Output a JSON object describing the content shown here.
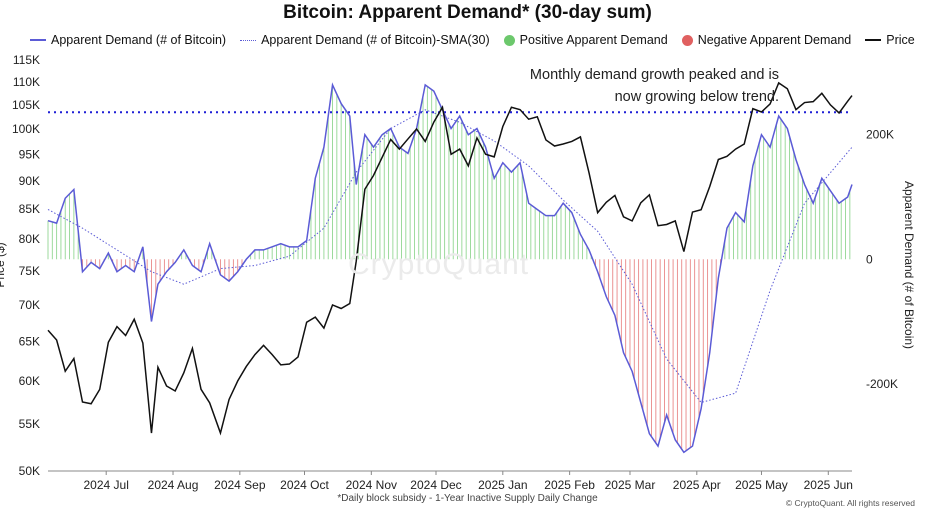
{
  "chart_data": {
    "type": "line",
    "title": "Bitcoin: Apparent Demand* (30-day sum)",
    "legend": [
      {
        "name": "Apparent Demand (# of Bitcoin)",
        "style": "line",
        "color": "#5b5bd6"
      },
      {
        "name": "Apparent Demand (# of Bitcoin)-SMA(30)",
        "style": "dotted",
        "color": "#5b5bd6"
      },
      {
        "name": "Positive Apparent Demand",
        "style": "dot",
        "color": "#6cc86c"
      },
      {
        "name": "Negative Apparent Demand",
        "style": "dot",
        "color": "#e06060"
      },
      {
        "name": "Price",
        "style": "line",
        "color": "#111111"
      }
    ],
    "legend_position": "top",
    "x_tick_labels": [
      "2024 Jul",
      "2024 Aug",
      "2024 Sep",
      "2024 Oct",
      "2024 Nov",
      "2024 Dec",
      "2025 Jan",
      "2025 Feb",
      "2025 Mar",
      "2025 Apr",
      "2025 May",
      "2025 Jun"
    ],
    "x_range": [
      "2024-06-18",
      "2025-06-26"
    ],
    "y_left": {
      "label": "Price ($)",
      "scale": "log",
      "range": [
        50000,
        115000
      ],
      "ticks": [
        {
          "v": 50000,
          "t": "50K"
        },
        {
          "v": 55000,
          "t": "55K"
        },
        {
          "v": 60000,
          "t": "60K"
        },
        {
          "v": 65000,
          "t": "65K"
        },
        {
          "v": 70000,
          "t": "70K"
        },
        {
          "v": 75000,
          "t": "75K"
        },
        {
          "v": 80000,
          "t": "80K"
        },
        {
          "v": 85000,
          "t": "85K"
        },
        {
          "v": 90000,
          "t": "90K"
        },
        {
          "v": 95000,
          "t": "95K"
        },
        {
          "v": 100000,
          "t": "100K"
        },
        {
          "v": 105000,
          "t": "105K"
        },
        {
          "v": 110000,
          "t": "110K"
        },
        {
          "v": 115000,
          "t": "115K"
        }
      ]
    },
    "y_right": {
      "label": "Apparent Demand (# of Bitcoin)",
      "range": [
        -340000,
        320000
      ],
      "ticks": [
        {
          "v": 200000,
          "t": "200K"
        },
        {
          "v": 0,
          "t": "0"
        },
        {
          "v": -200000,
          "t": "-200K"
        }
      ]
    },
    "reference_line": {
      "axis": "right",
      "value": 236000,
      "style": "dotted",
      "color": "#1f1fd6"
    },
    "annotation": "Monthly demand growth peaked and is\nnow growing below trend.",
    "series": [
      {
        "name": "Price",
        "axis": "left",
        "x": [
          "2024-06-18",
          "2024-06-22",
          "2024-06-26",
          "2024-06-30",
          "2024-07-04",
          "2024-07-08",
          "2024-07-12",
          "2024-07-16",
          "2024-07-20",
          "2024-07-24",
          "2024-07-28",
          "2024-08-01",
          "2024-08-05",
          "2024-08-08",
          "2024-08-12",
          "2024-08-16",
          "2024-08-20",
          "2024-08-24",
          "2024-08-28",
          "2024-09-01",
          "2024-09-06",
          "2024-09-10",
          "2024-09-14",
          "2024-09-18",
          "2024-09-22",
          "2024-09-26",
          "2024-09-30",
          "2024-10-04",
          "2024-10-08",
          "2024-10-12",
          "2024-10-16",
          "2024-10-20",
          "2024-10-24",
          "2024-10-28",
          "2024-11-01",
          "2024-11-05",
          "2024-11-08",
          "2024-11-12",
          "2024-11-16",
          "2024-11-20",
          "2024-11-24",
          "2024-11-28",
          "2024-12-02",
          "2024-12-06",
          "2024-12-10",
          "2024-12-14",
          "2024-12-18",
          "2024-12-22",
          "2024-12-26",
          "2024-12-30",
          "2025-01-03",
          "2025-01-07",
          "2025-01-11",
          "2025-01-15",
          "2025-01-19",
          "2025-01-23",
          "2025-01-27",
          "2025-01-31",
          "2025-02-04",
          "2025-02-08",
          "2025-02-12",
          "2025-02-16",
          "2025-02-20",
          "2025-02-24",
          "2025-02-28",
          "2025-03-04",
          "2025-03-08",
          "2025-03-12",
          "2025-03-16",
          "2025-03-20",
          "2025-03-24",
          "2025-03-28",
          "2025-04-01",
          "2025-04-05",
          "2025-04-09",
          "2025-04-13",
          "2025-04-17",
          "2025-04-21",
          "2025-04-25",
          "2025-04-29",
          "2025-05-03",
          "2025-05-07",
          "2025-05-11",
          "2025-05-15",
          "2025-05-19",
          "2025-05-23",
          "2025-05-27",
          "2025-05-31",
          "2025-06-04",
          "2025-06-08",
          "2025-06-12",
          "2025-06-16",
          "2025-06-20",
          "2025-06-24",
          "2025-06-26"
        ],
        "values": [
          66500,
          65200,
          61200,
          62800,
          57500,
          57300,
          59000,
          64900,
          67000,
          65800,
          68000,
          64800,
          54000,
          61700,
          59400,
          58800,
          61000,
          64100,
          59000,
          57400,
          54000,
          57800,
          60000,
          61800,
          63300,
          64500,
          63300,
          62000,
          62100,
          63000,
          67600,
          68300,
          66800,
          70000,
          69500,
          70200,
          76500,
          88500,
          91000,
          94400,
          97900,
          96000,
          98000,
          100000,
          97500,
          101400,
          104500,
          95000,
          96000,
          92800,
          98200,
          95000,
          94500,
          100500,
          104500,
          104000,
          102000,
          102500,
          97800,
          96600,
          97000,
          97500,
          98400,
          91500,
          84400,
          86200,
          87400,
          83700,
          83000,
          86100,
          87500,
          82200,
          82400,
          83000,
          78000,
          84500,
          84900,
          89000,
          94000,
          94600,
          96000,
          97000,
          104200,
          103500,
          105200,
          109800,
          108500,
          104000,
          105500,
          105700,
          107500,
          105000,
          103300,
          105800,
          107000
        ]
      },
      {
        "name": "Apparent Demand (# of Bitcoin)",
        "axis": "right",
        "x": [
          "2024-06-18",
          "2024-06-22",
          "2024-06-26",
          "2024-06-30",
          "2024-07-04",
          "2024-07-08",
          "2024-07-12",
          "2024-07-16",
          "2024-07-20",
          "2024-07-24",
          "2024-07-28",
          "2024-08-01",
          "2024-08-05",
          "2024-08-08",
          "2024-08-12",
          "2024-08-16",
          "2024-08-20",
          "2024-08-24",
          "2024-08-28",
          "2024-09-01",
          "2024-09-06",
          "2024-09-10",
          "2024-09-14",
          "2024-09-18",
          "2024-09-22",
          "2024-09-26",
          "2024-09-30",
          "2024-10-04",
          "2024-10-08",
          "2024-10-12",
          "2024-10-16",
          "2024-10-20",
          "2024-10-24",
          "2024-10-28",
          "2024-11-01",
          "2024-11-05",
          "2024-11-08",
          "2024-11-12",
          "2024-11-16",
          "2024-11-20",
          "2024-11-24",
          "2024-11-28",
          "2024-12-02",
          "2024-12-06",
          "2024-12-10",
          "2024-12-14",
          "2024-12-18",
          "2024-12-22",
          "2024-12-26",
          "2024-12-30",
          "2025-01-03",
          "2025-01-07",
          "2025-01-11",
          "2025-01-15",
          "2025-01-19",
          "2025-01-23",
          "2025-01-27",
          "2025-01-31",
          "2025-02-04",
          "2025-02-08",
          "2025-02-12",
          "2025-02-16",
          "2025-02-20",
          "2025-02-24",
          "2025-02-28",
          "2025-03-04",
          "2025-03-08",
          "2025-03-12",
          "2025-03-16",
          "2025-03-20",
          "2025-03-24",
          "2025-03-28",
          "2025-04-01",
          "2025-04-05",
          "2025-04-09",
          "2025-04-13",
          "2025-04-17",
          "2025-04-21",
          "2025-04-25",
          "2025-04-29",
          "2025-05-03",
          "2025-05-07",
          "2025-05-11",
          "2025-05-15",
          "2025-05-19",
          "2025-05-23",
          "2025-05-27",
          "2025-05-31",
          "2025-06-04",
          "2025-06-08",
          "2025-06-12",
          "2025-06-16",
          "2025-06-20",
          "2025-06-24",
          "2025-06-26"
        ],
        "values": [
          62000,
          58000,
          98000,
          112000,
          -20000,
          -5000,
          -15000,
          10000,
          -20000,
          -10000,
          -20000,
          20000,
          -100000,
          -40000,
          -20000,
          -5000,
          15000,
          -10000,
          -20000,
          25000,
          -25000,
          -35000,
          -20000,
          0,
          15000,
          15000,
          20000,
          25000,
          20000,
          20000,
          30000,
          130000,
          180000,
          280000,
          250000,
          230000,
          120000,
          200000,
          180000,
          200000,
          210000,
          180000,
          170000,
          210000,
          280000,
          270000,
          240000,
          210000,
          230000,
          200000,
          210000,
          180000,
          130000,
          155000,
          140000,
          155000,
          90000,
          80000,
          70000,
          70000,
          90000,
          75000,
          40000,
          15000,
          -20000,
          -60000,
          -90000,
          -150000,
          -180000,
          -230000,
          -280000,
          -300000,
          -250000,
          -290000,
          -310000,
          -300000,
          -240000,
          -150000,
          -30000,
          50000,
          75000,
          60000,
          150000,
          200000,
          180000,
          230000,
          210000,
          160000,
          120000,
          90000,
          130000,
          110000,
          90000,
          100000,
          120000
        ]
      },
      {
        "name": "Apparent Demand (# of Bitcoin)-SMA(30)",
        "axis": "right",
        "x": [
          "2024-06-18",
          "2024-07-04",
          "2024-07-20",
          "2024-08-05",
          "2024-08-20",
          "2024-09-06",
          "2024-09-22",
          "2024-10-08",
          "2024-10-24",
          "2024-11-08",
          "2024-11-24",
          "2024-12-10",
          "2024-12-26",
          "2025-01-11",
          "2025-01-27",
          "2025-02-12",
          "2025-02-28",
          "2025-03-16",
          "2025-04-01",
          "2025-04-17",
          "2025-05-03",
          "2025-05-19",
          "2025-06-04",
          "2025-06-26"
        ],
        "values": [
          80000,
          50000,
          15000,
          -20000,
          -40000,
          -15000,
          -10000,
          5000,
          50000,
          140000,
          210000,
          240000,
          220000,
          190000,
          150000,
          95000,
          45000,
          -40000,
          -160000,
          -230000,
          -215000,
          -50000,
          90000,
          180000
        ]
      }
    ]
  },
  "footnote": "*Daily block subsidy - 1-Year Inactive Supply Daily Change",
  "credit": "© CryptoQuant. All rights reserved",
  "watermark": "CryptoQuant"
}
